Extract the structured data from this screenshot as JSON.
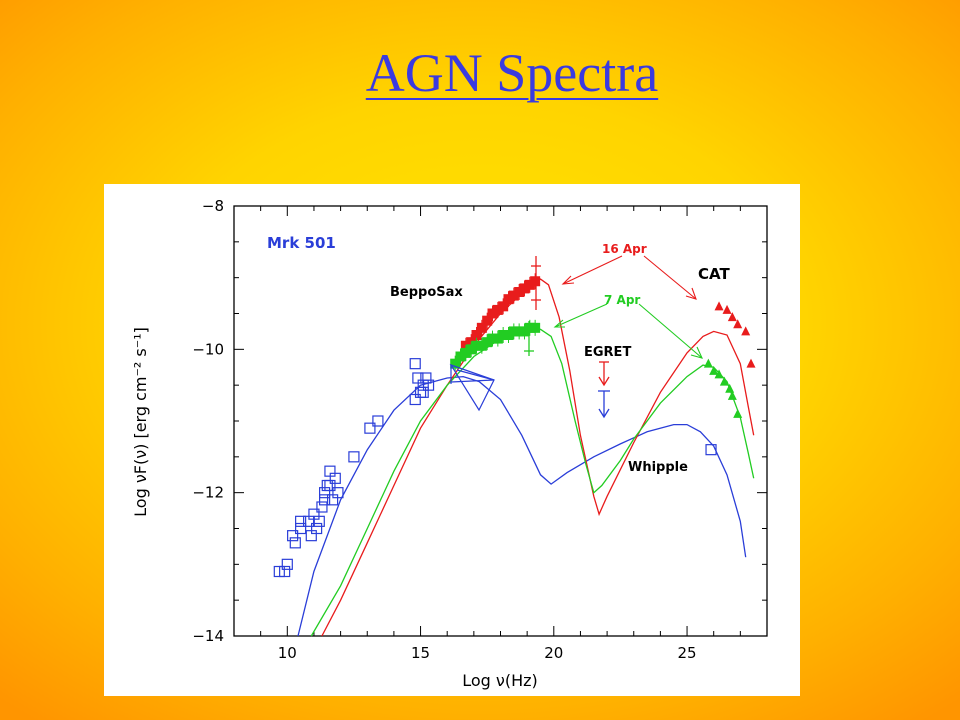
{
  "slide": {
    "title": "AGN Spectra"
  },
  "colors": {
    "background": "#ffd400",
    "title": "#3a3ae0",
    "blue": "#2a3ed8",
    "red": "#e81c1c",
    "green": "#22cc22",
    "black": "#000000"
  },
  "chart_data": {
    "type": "scatter",
    "title": "Mrk 501",
    "xlabel": "Log ν(Hz)",
    "ylabel": "Log νF(ν) [erg cm⁻² s⁻¹]",
    "xlim": [
      8,
      28
    ],
    "ylim": [
      -14,
      -8
    ],
    "xticks": [
      10,
      15,
      20,
      25
    ],
    "yticks": [
      -8,
      -10,
      -12,
      -14
    ],
    "grid": false,
    "annotations": {
      "beppo": "BeppoSax",
      "apr16": "16 Apr",
      "apr7": "7 Apr",
      "cat": "CAT",
      "egret": "EGRET",
      "whipple": "Whipple"
    },
    "series": [
      {
        "name": "radio-optical-data",
        "color": "#2a3ed8",
        "marker": "square",
        "points": [
          [
            9.7,
            -13.1
          ],
          [
            9.9,
            -13.1
          ],
          [
            10.0,
            -13.0
          ],
          [
            10.2,
            -12.6
          ],
          [
            10.3,
            -12.7
          ],
          [
            10.5,
            -12.5
          ],
          [
            10.5,
            -12.4
          ],
          [
            10.8,
            -12.4
          ],
          [
            10.9,
            -12.6
          ],
          [
            11.0,
            -12.3
          ],
          [
            11.1,
            -12.5
          ],
          [
            11.2,
            -12.4
          ],
          [
            11.3,
            -12.2
          ],
          [
            11.4,
            -12.0
          ],
          [
            11.4,
            -12.1
          ],
          [
            11.5,
            -11.9
          ],
          [
            11.6,
            -11.9
          ],
          [
            11.7,
            -12.1
          ],
          [
            11.8,
            -11.8
          ],
          [
            11.9,
            -12.0
          ],
          [
            11.6,
            -11.7
          ],
          [
            12.5,
            -11.5
          ],
          [
            13.1,
            -11.1
          ],
          [
            13.4,
            -11.0
          ],
          [
            14.8,
            -10.2
          ],
          [
            14.8,
            -10.7
          ],
          [
            14.9,
            -10.4
          ],
          [
            15.0,
            -10.6
          ],
          [
            15.1,
            -10.5
          ],
          [
            15.2,
            -10.4
          ],
          [
            15.3,
            -10.5
          ],
          [
            15.1,
            -10.6
          ],
          [
            25.9,
            -11.4
          ]
        ]
      },
      {
        "name": "sync-ssc-blue",
        "color": "#2a3ed8",
        "marker": "line",
        "points": [
          [
            10.4,
            -14.0
          ],
          [
            11.0,
            -13.1
          ],
          [
            12.0,
            -12.1
          ],
          [
            13.0,
            -11.4
          ],
          [
            14.0,
            -10.85
          ],
          [
            15.0,
            -10.5
          ],
          [
            16.0,
            -10.4
          ],
          [
            16.6,
            -10.38
          ],
          [
            17.2,
            -10.45
          ],
          [
            18.0,
            -10.7
          ],
          [
            18.8,
            -11.2
          ],
          [
            19.5,
            -11.75
          ],
          [
            19.9,
            -11.88
          ],
          [
            20.5,
            -11.72
          ],
          [
            21.5,
            -11.5
          ],
          [
            22.5,
            -11.32
          ],
          [
            23.5,
            -11.15
          ],
          [
            24.5,
            -11.05
          ],
          [
            25.0,
            -11.05
          ],
          [
            25.5,
            -11.15
          ],
          [
            26.0,
            -11.35
          ],
          [
            26.5,
            -11.75
          ],
          [
            27.0,
            -12.4
          ],
          [
            27.2,
            -12.9
          ]
        ]
      },
      {
        "name": "model-16-apr",
        "color": "#e81c1c",
        "marker": "line",
        "points": [
          [
            11.3,
            -14.0
          ],
          [
            12.0,
            -13.5
          ],
          [
            13.0,
            -12.7
          ],
          [
            14.0,
            -11.9
          ],
          [
            15.0,
            -11.1
          ],
          [
            16.0,
            -10.5
          ],
          [
            17.0,
            -9.95
          ],
          [
            18.0,
            -9.5
          ],
          [
            19.0,
            -9.15
          ],
          [
            19.5,
            -9.02
          ],
          [
            19.8,
            -9.1
          ],
          [
            20.2,
            -9.55
          ],
          [
            20.6,
            -10.3
          ],
          [
            21.0,
            -11.2
          ],
          [
            21.5,
            -12.05
          ],
          [
            21.7,
            -12.3
          ],
          [
            22.0,
            -12.05
          ],
          [
            23.0,
            -11.3
          ],
          [
            24.0,
            -10.6
          ],
          [
            25.0,
            -10.05
          ],
          [
            25.6,
            -9.82
          ],
          [
            26.0,
            -9.75
          ],
          [
            26.5,
            -9.8
          ],
          [
            27.0,
            -10.2
          ],
          [
            27.3,
            -10.8
          ],
          [
            27.5,
            -11.2
          ]
        ]
      },
      {
        "name": "model-7-apr",
        "color": "#22cc22",
        "marker": "line",
        "points": [
          [
            10.9,
            -14.0
          ],
          [
            12.0,
            -13.3
          ],
          [
            13.0,
            -12.5
          ],
          [
            14.0,
            -11.7
          ],
          [
            15.0,
            -11.0
          ],
          [
            16.0,
            -10.5
          ],
          [
            17.0,
            -10.1
          ],
          [
            18.0,
            -9.85
          ],
          [
            19.0,
            -9.75
          ],
          [
            19.5,
            -9.72
          ],
          [
            19.9,
            -9.82
          ],
          [
            20.3,
            -10.2
          ],
          [
            20.8,
            -11.0
          ],
          [
            21.2,
            -11.6
          ],
          [
            21.5,
            -12.0
          ],
          [
            21.8,
            -11.9
          ],
          [
            22.5,
            -11.55
          ],
          [
            23.0,
            -11.25
          ],
          [
            24.0,
            -10.75
          ],
          [
            25.0,
            -10.38
          ],
          [
            25.6,
            -10.22
          ],
          [
            26.0,
            -10.25
          ],
          [
            26.5,
            -10.45
          ],
          [
            27.0,
            -10.95
          ],
          [
            27.3,
            -11.45
          ],
          [
            27.5,
            -11.8
          ]
        ]
      },
      {
        "name": "beppo-16-apr-data",
        "color": "#e81c1c",
        "marker": "dense",
        "points": [
          [
            16.5,
            -10.1
          ],
          [
            16.7,
            -9.95
          ],
          [
            16.9,
            -9.9
          ],
          [
            17.1,
            -9.8
          ],
          [
            17.3,
            -9.7
          ],
          [
            17.5,
            -9.6
          ],
          [
            17.7,
            -9.5
          ],
          [
            17.9,
            -9.45
          ],
          [
            18.1,
            -9.4
          ],
          [
            18.3,
            -9.3
          ],
          [
            18.5,
            -9.25
          ],
          [
            18.7,
            -9.2
          ],
          [
            18.9,
            -9.15
          ],
          [
            19.1,
            -9.1
          ],
          [
            19.3,
            -9.05
          ]
        ]
      },
      {
        "name": "beppo-7-apr-data",
        "color": "#22cc22",
        "marker": "dense",
        "points": [
          [
            16.3,
            -10.2
          ],
          [
            16.5,
            -10.1
          ],
          [
            16.7,
            -10.05
          ],
          [
            16.9,
            -10.0
          ],
          [
            17.1,
            -9.95
          ],
          [
            17.3,
            -9.95
          ],
          [
            17.5,
            -9.9
          ],
          [
            17.7,
            -9.85
          ],
          [
            17.9,
            -9.85
          ],
          [
            18.1,
            -9.8
          ],
          [
            18.3,
            -9.8
          ],
          [
            18.5,
            -9.75
          ],
          [
            18.7,
            -9.75
          ],
          [
            18.9,
            -9.75
          ],
          [
            19.1,
            -9.7
          ],
          [
            19.3,
            -9.7
          ]
        ]
      },
      {
        "name": "cat-16-apr-data",
        "color": "#e81c1c",
        "marker": "triangle",
        "points": [
          [
            26.2,
            -9.4
          ],
          [
            26.5,
            -9.45
          ],
          [
            26.7,
            -9.55
          ],
          [
            26.9,
            -9.65
          ],
          [
            27.2,
            -9.75
          ],
          [
            27.4,
            -10.2
          ]
        ]
      },
      {
        "name": "cat-7-apr-data",
        "color": "#22cc22",
        "marker": "triangle",
        "points": [
          [
            25.8,
            -10.2
          ],
          [
            26.0,
            -10.3
          ],
          [
            26.2,
            -10.35
          ],
          [
            26.4,
            -10.45
          ],
          [
            26.6,
            -10.55
          ],
          [
            26.7,
            -10.65
          ],
          [
            26.9,
            -10.9
          ]
        ]
      }
    ]
  }
}
